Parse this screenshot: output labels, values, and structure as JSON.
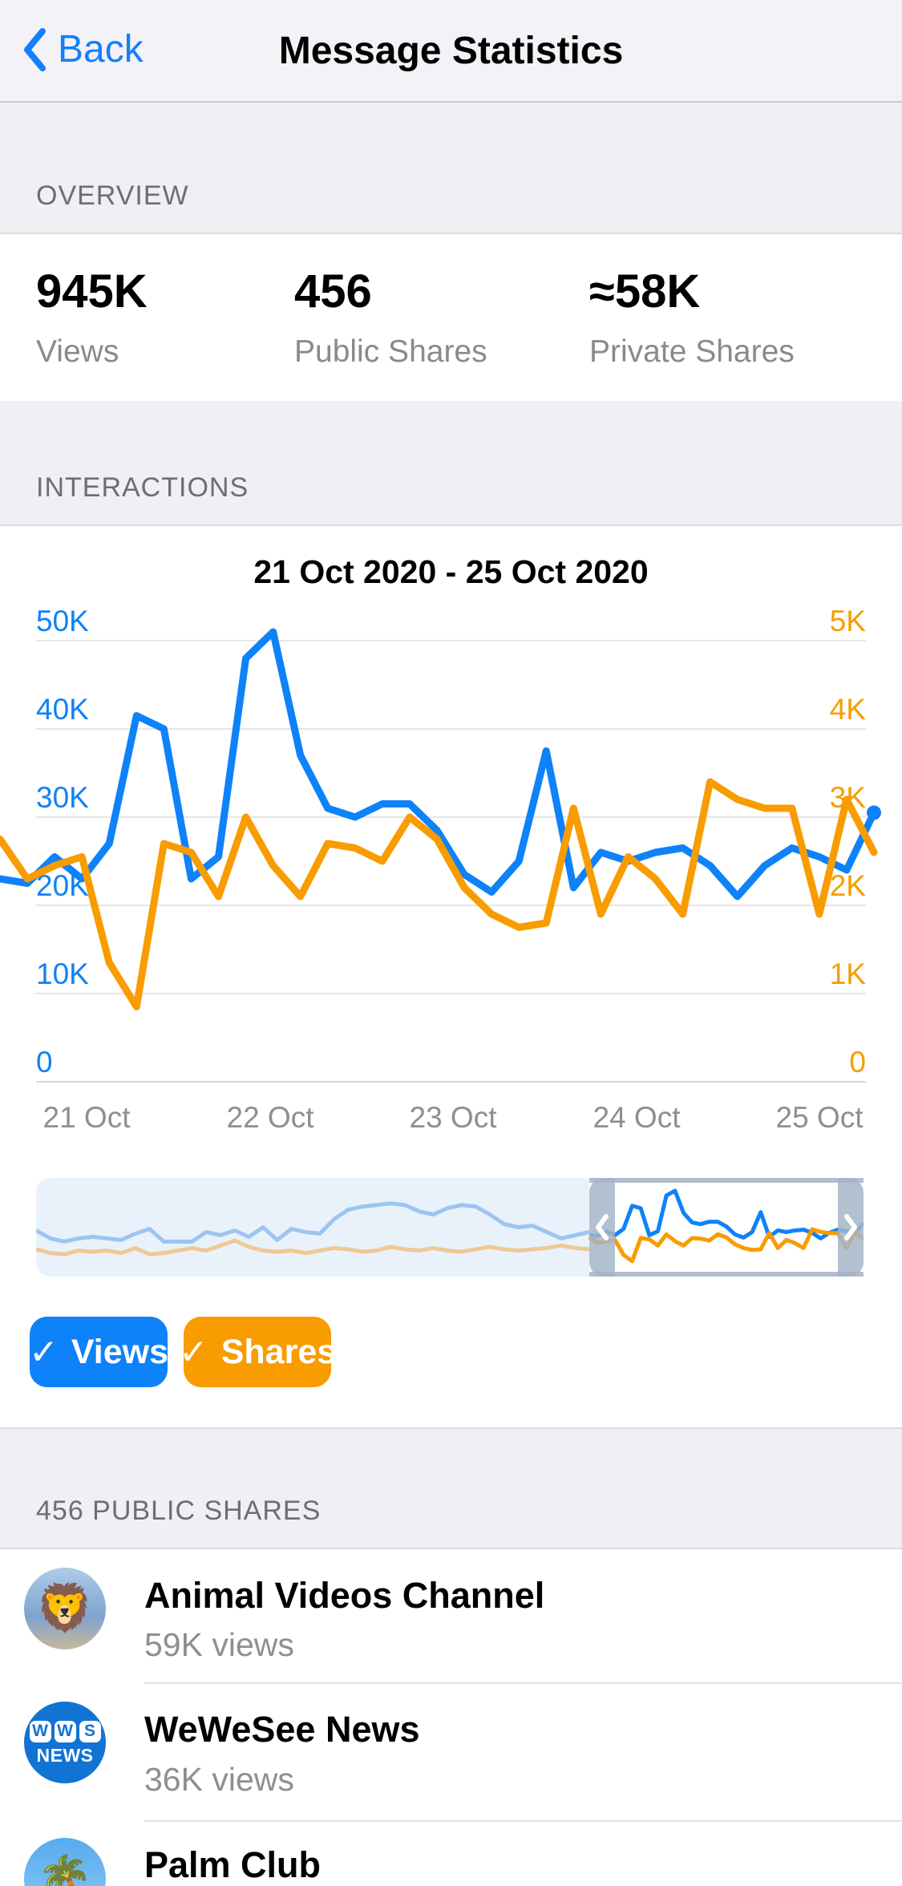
{
  "header": {
    "back_label": "Back",
    "title": "Message Statistics"
  },
  "overview": {
    "section_label": "OVERVIEW",
    "stats": [
      {
        "value": "945K",
        "label": "Views"
      },
      {
        "value": "456",
        "label": "Public Shares"
      },
      {
        "value": "≈58K",
        "label": "Private Shares"
      }
    ]
  },
  "interactions": {
    "section_label": "INTERACTIONS",
    "legend": [
      {
        "check": "✓",
        "label": "Views",
        "color": "#0E82F8"
      },
      {
        "check": "✓",
        "label": "Shares",
        "color": "#F89C00"
      }
    ]
  },
  "chart_data": {
    "type": "line",
    "title": "21 Oct 2020 - 25 Oct 2020",
    "x_tick_labels": [
      "21 Oct",
      "22 Oct",
      "23 Oct",
      "24 Oct",
      "25 Oct"
    ],
    "left_axis": {
      "label": "Views",
      "color": "#0E82F8",
      "ticks": [
        "0",
        "10K",
        "20K",
        "30K",
        "40K",
        "50K"
      ],
      "range": [
        0,
        50000
      ]
    },
    "right_axis": {
      "label": "Shares",
      "color": "#F89C00",
      "ticks": [
        "0",
        "1K",
        "2K",
        "3K",
        "4K",
        "5K"
      ],
      "range": [
        0,
        5000
      ]
    },
    "grid": true,
    "legend_position": "below",
    "series": [
      {
        "name": "Views",
        "axis": "left",
        "color": "#0E82F8",
        "last_point_dot": true,
        "values": [
          23000,
          22500,
          25500,
          23000,
          27000,
          41500,
          40000,
          23000,
          25500,
          48000,
          51000,
          37000,
          31000,
          30000,
          31500,
          31500,
          28500,
          23500,
          21500,
          25000,
          37500,
          22000,
          26000,
          25000,
          26000,
          26500,
          24500,
          21000,
          24500,
          26500,
          25500,
          24000,
          30500
        ]
      },
      {
        "name": "Shares",
        "axis": "right",
        "color": "#F89C00",
        "values": [
          2750,
          2300,
          2450,
          2550,
          1350,
          850,
          2700,
          2600,
          2100,
          3000,
          2450,
          2100,
          2700,
          2650,
          2500,
          3000,
          2750,
          2200,
          1900,
          1750,
          1800,
          3100,
          1900,
          2550,
          2300,
          1900,
          3400,
          3200,
          3100,
          3100,
          1900,
          3200,
          2600
        ]
      }
    ],
    "minimap": {
      "selected_range_fraction": [
        0.67,
        1.0
      ],
      "pre_views": [
        26000,
        21000,
        19000,
        21000,
        22000,
        21000,
        20000,
        24000,
        27000,
        19000,
        19000,
        19000,
        25000,
        23000,
        26000,
        22000,
        28000,
        20000,
        27000,
        25000,
        24000,
        33000,
        39000,
        41000,
        42000,
        43000,
        42000,
        38000,
        36000,
        40000,
        42000,
        41000,
        36000,
        30000,
        28000,
        29000,
        25000,
        21000,
        23000,
        25000
      ],
      "pre_shares": [
        1800,
        1500,
        1400,
        1700,
        1600,
        1700,
        1500,
        1900,
        1400,
        1500,
        1700,
        1900,
        1700,
        2100,
        2500,
        2000,
        1700,
        1600,
        1700,
        1500,
        1700,
        1900,
        1800,
        1600,
        1700,
        2000,
        1800,
        1700,
        1900,
        1700,
        1600,
        1800,
        2000,
        1800,
        1700,
        1800,
        1900,
        2100,
        1900,
        1800
      ]
    }
  },
  "public_shares": {
    "section_label": "456 PUBLIC SHARES",
    "items": [
      {
        "title": "Animal Videos Channel",
        "views": "59K views",
        "avatar_emoji": "🦁"
      },
      {
        "title": "WeWeSee News",
        "views": "36K views",
        "avatar_boxes": [
          "W",
          "W",
          "S"
        ],
        "avatar_caption": "NEWS"
      },
      {
        "title": "Palm Club",
        "views": "",
        "avatar_emoji": "🌴"
      }
    ]
  },
  "colors": {
    "accent_blue": "#0E82F8",
    "accent_orange": "#F89C00",
    "back_link": "#157EFD",
    "minimap_bg": "#E9F2FB",
    "minimap_faded_blue": "#9CC5F0",
    "minimap_faded_orange": "#EFC994",
    "minimap_handle": "#A4B5C7"
  }
}
